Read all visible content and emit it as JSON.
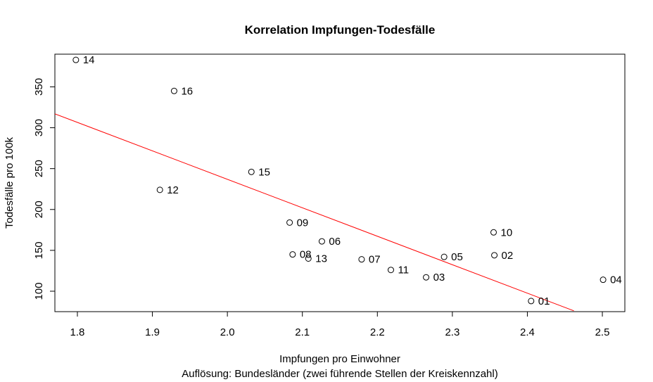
{
  "chart_data": {
    "type": "scatter",
    "title": "Korrelation Impfungen-Todesfälle",
    "xlabel": "Impfungen pro Einwohner",
    "subtitle": "Auflösung: Bundesländer (zwei führende Stellen der Kreiskennzahl)",
    "ylabel": "Todesfälle pro 100k",
    "xlim": [
      1.77,
      2.53
    ],
    "ylim": [
      75,
      390
    ],
    "xticks": [
      "1.8",
      "1.9",
      "2.0",
      "2.1",
      "2.2",
      "2.3",
      "2.4",
      "2.5"
    ],
    "yticks": [
      "100",
      "150",
      "200",
      "250",
      "300",
      "350"
    ],
    "grid": false,
    "point_color": "#000000",
    "line_color": "#ff0000",
    "points": [
      {
        "label": "01",
        "x": 2.405,
        "y": 88
      },
      {
        "label": "02",
        "x": 2.356,
        "y": 144
      },
      {
        "label": "03",
        "x": 2.265,
        "y": 117
      },
      {
        "label": "04",
        "x": 2.501,
        "y": 114
      },
      {
        "label": "05",
        "x": 2.289,
        "y": 142
      },
      {
        "label": "06",
        "x": 2.126,
        "y": 161
      },
      {
        "label": "07",
        "x": 2.179,
        "y": 139
      },
      {
        "label": "08",
        "x": 2.087,
        "y": 145
      },
      {
        "label": "09",
        "x": 2.083,
        "y": 184
      },
      {
        "label": "10",
        "x": 2.355,
        "y": 172
      },
      {
        "label": "11",
        "x": 2.218,
        "y": 126
      },
      {
        "label": "12",
        "x": 1.91,
        "y": 224
      },
      {
        "label": "13",
        "x": 2.108,
        "y": 140
      },
      {
        "label": "14",
        "x": 1.798,
        "y": 383
      },
      {
        "label": "15",
        "x": 2.032,
        "y": 246
      },
      {
        "label": "16",
        "x": 1.929,
        "y": 345
      }
    ],
    "regression_line": {
      "x": [
        1.77,
        2.462
      ],
      "y": [
        317,
        76
      ]
    }
  }
}
